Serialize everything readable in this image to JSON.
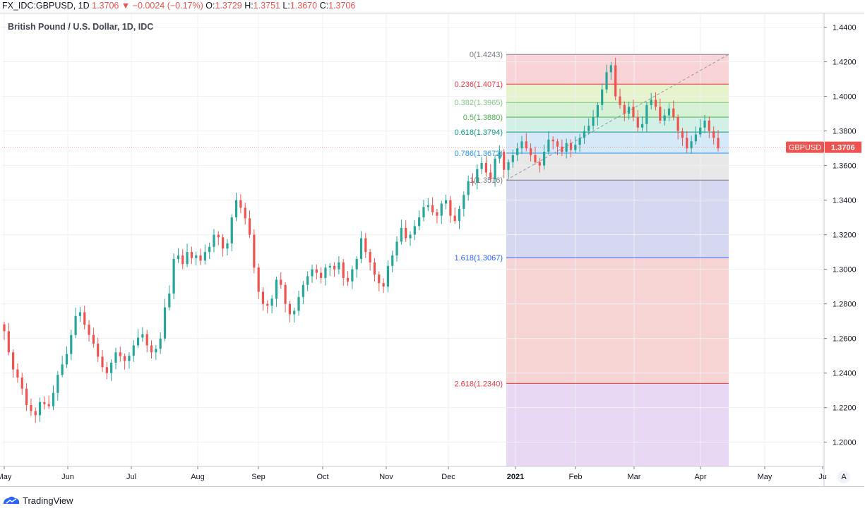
{
  "header": {
    "symbol": "FX_IDC:GBPUSD, 1D",
    "last": "1.3706",
    "change_arrow": "▼",
    "change": "−0.0024 (−0.17%)",
    "o_label": "O:",
    "o": "1.3729",
    "h_label": "H:",
    "h": "1.3751",
    "l_label": "L:",
    "l": "1.3670",
    "c_label": "C:",
    "c": "1.3706"
  },
  "title": "British Pound / U.S. Dollar, 1D, IDC",
  "price_tag": {
    "symbol": "GBPUSD",
    "value": "1.3706"
  },
  "footer": {
    "brand": "TradingView"
  },
  "auto_label": "A",
  "colors": {
    "up": "#26a69a",
    "down": "#ef5350",
    "grid": "#eef0f3",
    "axis": "#787b86"
  },
  "chart_data": {
    "type": "candlestick",
    "title": "British Pound / U.S. Dollar, 1D, IDC",
    "ylim": [
      1.186,
      1.448
    ],
    "y_ticks": [
      "1.2000",
      "1.2200",
      "1.2400",
      "1.2600",
      "1.2800",
      "1.3000",
      "1.3200",
      "1.3400",
      "1.3600",
      "1.3800",
      "1.4000",
      "1.4200",
      "1.4400"
    ],
    "x_ticks": [
      "May",
      "Jun",
      "Jul",
      "Aug",
      "Sep",
      "Oct",
      "Nov",
      "Dec",
      "2021",
      "Feb",
      "Mar",
      "Apr",
      "May",
      "Ju"
    ],
    "grid": true,
    "close_series": [
      1.2642,
      1.252,
      1.2421,
      1.2374,
      1.231,
      1.2215,
      1.218,
      1.2156,
      1.2232,
      1.222,
      1.2208,
      1.2285,
      1.239,
      1.245,
      1.251,
      1.262,
      1.273,
      1.2752,
      1.268,
      1.2621,
      1.257,
      1.2495,
      1.2434,
      1.24,
      1.246,
      1.252,
      1.2498,
      1.247,
      1.25,
      1.256,
      1.2605,
      1.2625,
      1.256,
      1.252,
      1.254,
      1.26,
      1.278,
      1.286,
      1.306,
      1.308,
      1.303,
      1.31,
      1.3065,
      1.308,
      1.305,
      1.31,
      1.313,
      1.32,
      1.3185,
      1.312,
      1.315,
      1.33,
      1.34,
      1.3356,
      1.3295,
      1.32,
      1.301,
      1.287,
      1.28,
      1.279,
      1.283,
      1.294,
      1.291,
      1.28,
      1.274,
      1.276,
      1.284,
      1.291,
      1.296,
      1.3,
      1.298,
      1.295,
      1.301,
      1.302,
      1.3,
      1.304,
      1.295,
      1.293,
      1.3,
      1.306,
      1.318,
      1.31,
      1.304,
      1.297,
      1.292,
      1.29,
      1.302,
      1.308,
      1.316,
      1.324,
      1.318,
      1.32,
      1.325,
      1.33,
      1.336,
      1.337,
      1.333,
      1.331,
      1.338,
      1.34,
      1.331,
      1.328,
      1.335,
      1.343,
      1.351,
      1.35,
      1.358,
      1.3615,
      1.356,
      1.352,
      1.364,
      1.368,
      1.3575,
      1.362,
      1.366,
      1.37,
      1.374,
      1.37,
      1.366,
      1.362,
      1.36,
      1.368,
      1.375,
      1.374,
      1.371,
      1.368,
      1.373,
      1.369,
      1.372,
      1.376,
      1.38,
      1.383,
      1.388,
      1.395,
      1.404,
      1.414,
      1.418,
      1.4,
      1.395,
      1.39,
      1.394,
      1.388,
      1.382,
      1.384,
      1.395,
      1.398,
      1.394,
      1.386,
      1.389,
      1.393,
      1.388,
      1.38,
      1.376,
      1.37,
      1.374,
      1.378,
      1.382,
      1.386,
      1.38,
      1.376,
      1.37
    ],
    "fibonacci": {
      "levels": [
        {
          "label": "0(1.4243)",
          "ratio": 0,
          "price": 1.4243,
          "color": "#787b86"
        },
        {
          "label": "0.236(1.4071)",
          "ratio": 0.236,
          "price": 1.4071,
          "color": "#f23645"
        },
        {
          "label": "0.382(1.3965)",
          "ratio": 0.382,
          "price": 1.3965,
          "color": "#81c784"
        },
        {
          "label": "0.5(1.3880)",
          "ratio": 0.5,
          "price": 1.388,
          "color": "#4caf50"
        },
        {
          "label": "0.618(1.3794)",
          "ratio": 0.618,
          "price": 1.3794,
          "color": "#089981"
        },
        {
          "label": "0.786(1.3672)",
          "ratio": 0.786,
          "price": 1.3672,
          "color": "#2196f3"
        },
        {
          "label": "1(1.3516)",
          "ratio": 1,
          "price": 1.3516,
          "color": "#787b86"
        },
        {
          "label": "1.618(1.3067)",
          "ratio": 1.618,
          "price": 1.3067,
          "color": "#2962ff"
        },
        {
          "label": "2.618(1.2340)",
          "ratio": 2.618,
          "price": 1.234,
          "color": "#f23645"
        }
      ],
      "bands": [
        {
          "from": 1.4243,
          "to": 1.4071,
          "color": "#f8cfd1"
        },
        {
          "from": 1.4071,
          "to": 1.3965,
          "color": "#e3f2c6"
        },
        {
          "from": 1.3965,
          "to": 1.388,
          "color": "#d3efd2"
        },
        {
          "from": 1.388,
          "to": 1.3794,
          "color": "#cdeee3"
        },
        {
          "from": 1.3794,
          "to": 1.3672,
          "color": "#d1e7f7"
        },
        {
          "from": 1.3672,
          "to": 1.3516,
          "color": "#e6e6e6"
        },
        {
          "from": 1.3516,
          "to": 1.3067,
          "color": "#d2d4f0"
        },
        {
          "from": 1.3067,
          "to": 1.234,
          "color": "#f5cfce"
        },
        {
          "from": 1.234,
          "to": 1.186,
          "color": "#e5d4f3"
        }
      ]
    }
  }
}
